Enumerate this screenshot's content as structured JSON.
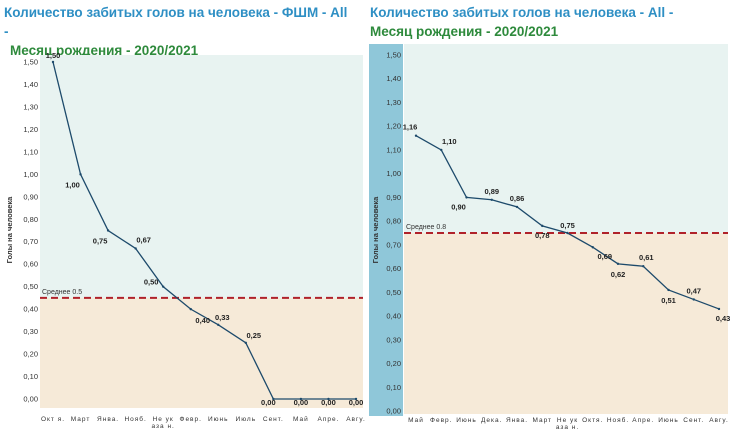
{
  "chart_data": [
    {
      "type": "line",
      "title_part1": "Количество забитых голов на человека - ФШМ - All -",
      "title_part2": "Месяц рождения - 2020/2021",
      "ylabel": "Голы на человека",
      "ylim": [
        0,
        1.5
      ],
      "yticks": [
        "0,00",
        "0,10",
        "0,20",
        "0,30",
        "0,40",
        "0,50",
        "0,60",
        "0,70",
        "0,80",
        "0,90",
        "1,00",
        "1,10",
        "1,20",
        "1,30",
        "1,40",
        "1,50"
      ],
      "categories": [
        "Окт я.",
        "Март",
        "Янва.",
        "Нояб.",
        "Не ук аза н.",
        "Февр.",
        "Июнь",
        "Июль",
        "Сент.",
        "Май",
        "Апре.",
        "Авгу."
      ],
      "values": [
        1.5,
        1.0,
        0.75,
        0.67,
        0.5,
        0.4,
        0.33,
        0.25,
        0.0,
        0.0,
        0.0,
        0.0
      ],
      "value_labels": [
        "1,50",
        "1,00",
        "0,75",
        "0,67",
        "0,50",
        "0,40",
        "0,33",
        "0,25",
        "0,00",
        "0,00",
        "0,00",
        "0,00"
      ],
      "average": 0.45,
      "average_label": "Среднее 0.5",
      "colors": {
        "above": "#e8f3f1",
        "below": "#f6ead8",
        "line": "#1d4a6b",
        "avg": "#b0222a"
      }
    },
    {
      "type": "line",
      "title_part1": "Количество забитых голов на человека - All -",
      "title_part2": "Месяц рождения - 2020/2021",
      "ylabel": "Голы на человека",
      "ylim": [
        0,
        1.5
      ],
      "yticks": [
        "0,00",
        "0,10",
        "0,20",
        "0,30",
        "0,40",
        "0,50",
        "0,60",
        "0,70",
        "0,80",
        "0,90",
        "1,00",
        "1,10",
        "1,20",
        "1,30",
        "1,40",
        "1,50"
      ],
      "categories": [
        "Май",
        "Февр.",
        "Июнь",
        "Дека.",
        "Янва.",
        "Март",
        "Не ук аза н.",
        "Октя.",
        "Нояб.",
        "Апре.",
        "Июнь",
        "Сент.",
        "Авгу."
      ],
      "values": [
        1.16,
        1.1,
        0.9,
        0.89,
        0.86,
        0.78,
        0.75,
        0.69,
        0.62,
        0.61,
        0.51,
        0.47,
        0.43
      ],
      "value_labels": [
        "1,16",
        "1,10",
        "0,90",
        "0,89",
        "0,86",
        "0,78",
        "0,75",
        "0,69",
        "0,62",
        "0,61",
        "0,51",
        "0,47",
        "0,43"
      ],
      "average": 0.75,
      "average_label": "Среднее 0.8",
      "colors": {
        "above": "#e8f3f1",
        "below": "#f6ead8",
        "line": "#1d4a6b",
        "avg": "#b0222a",
        "sidebar": "#8fc7d9"
      }
    }
  ]
}
